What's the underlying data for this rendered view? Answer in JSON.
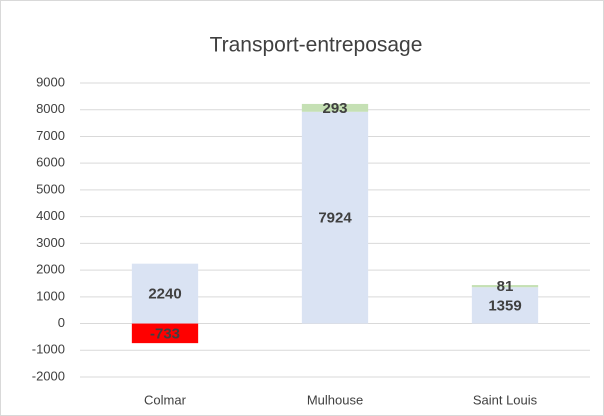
{
  "chart_data": {
    "type": "stacked_bar",
    "title": "Transport-entreposage",
    "categories": [
      "Colmar",
      "Mulhouse",
      "Saint Louis"
    ],
    "series": [
      {
        "color": "#dae3f3",
        "values": [
          2240,
          7924,
          1359
        ]
      },
      {
        "colors": [
          "#ff0000",
          "#c5e0b4",
          "#c5e0b4"
        ],
        "values": [
          -733,
          293,
          81
        ]
      }
    ],
    "ylim": [
      -2000,
      9000
    ],
    "yticks": [
      -2000,
      -1000,
      0,
      1000,
      2000,
      3000,
      4000,
      5000,
      6000,
      7000,
      8000,
      9000
    ],
    "grid": true
  }
}
